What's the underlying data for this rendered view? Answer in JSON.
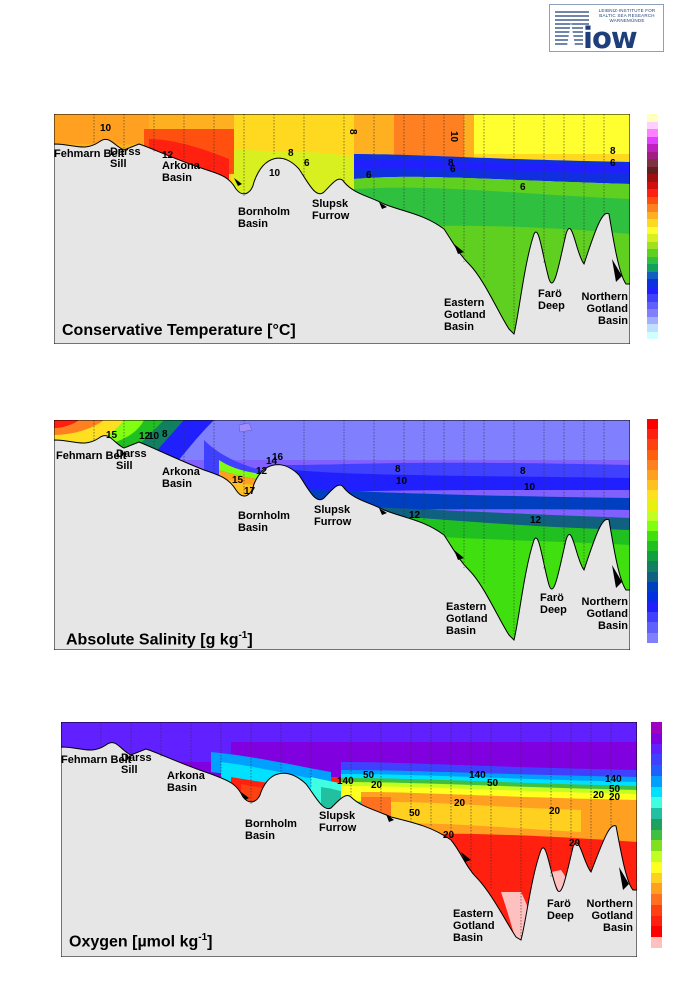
{
  "logo": {
    "institute_text": "LEIBNIZ-INSTITUTE FOR BALTIC SEA RESEARCH WARNEMÜNDE",
    "wordmark": "iow"
  },
  "panels": [
    {
      "id": "temperature",
      "title": "Conservative Temperature [°C]",
      "contour_labels": [
        "10",
        "12",
        "8",
        "10",
        "8",
        "6",
        "10",
        "6",
        "6",
        "8",
        "6",
        "8",
        "6"
      ],
      "colorbar": [
        "#ffffc0",
        "#ffd0ff",
        "#ff80ff",
        "#e040ff",
        "#c020c0",
        "#a02080",
        "#803040",
        "#602020",
        "#a01010",
        "#d01010",
        "#ff2010",
        "#ff5010",
        "#ff8020",
        "#ffb020",
        "#ffd820",
        "#ffff30",
        "#d8f020",
        "#a0e020",
        "#60d020",
        "#30c040",
        "#10a060",
        "#1060c0",
        "#1030e0",
        "#2020ff",
        "#4040ff",
        "#6060ff",
        "#8080ff",
        "#a0b0ff",
        "#c0e0ff",
        "#d0ffff"
      ]
    },
    {
      "id": "salinity",
      "title": "Absolute Salinity [g kg",
      "title_sup": "-1",
      "title_end": "]",
      "contour_labels": [
        "15",
        "12",
        "10",
        "8",
        "12",
        "14",
        "16",
        "15",
        "17",
        "8",
        "10",
        "12",
        "8",
        "10",
        "12"
      ],
      "colorbar": [
        "#ff0000",
        "#ff2010",
        "#ff4010",
        "#ff6010",
        "#ff8020",
        "#ffa020",
        "#ffc020",
        "#ffe020",
        "#e8f010",
        "#c0ff20",
        "#80ff10",
        "#40e010",
        "#20c020",
        "#10a040",
        "#108060",
        "#106080",
        "#0040c0",
        "#0030e0",
        "#2020ff",
        "#4040ff",
        "#6060ff",
        "#8080ff"
      ]
    },
    {
      "id": "oxygen",
      "title": "Oxygen [µmol kg",
      "title_sup": "-1",
      "title_end": "]",
      "contour_labels": [
        "140",
        "50",
        "20",
        "140",
        "50",
        "50",
        "20",
        "20",
        "20",
        "140",
        "50",
        "20",
        "20",
        "20"
      ],
      "colorbar": [
        "#a000c0",
        "#8000e0",
        "#6020ff",
        "#4040ff",
        "#2060ff",
        "#00a0ff",
        "#00e0ff",
        "#40ffe0",
        "#20c0a0",
        "#20a060",
        "#40c040",
        "#80e020",
        "#c0ff20",
        "#ffff20",
        "#ffd020",
        "#ffa020",
        "#ff7020",
        "#ff4010",
        "#ff2010",
        "#ff0000",
        "#ffc0c0"
      ]
    }
  ],
  "basins": {
    "fehmarn": "Fehmarn Belt",
    "darss": "Darss Sill",
    "arkona": "Arkona Basin",
    "bornholm": "Bornholm Basin",
    "slupsk": "Slupsk Furrow",
    "eastern": "Eastern Gotland Basin",
    "faro": "Farö Deep",
    "northern": "Northern Gotland Basin"
  }
}
